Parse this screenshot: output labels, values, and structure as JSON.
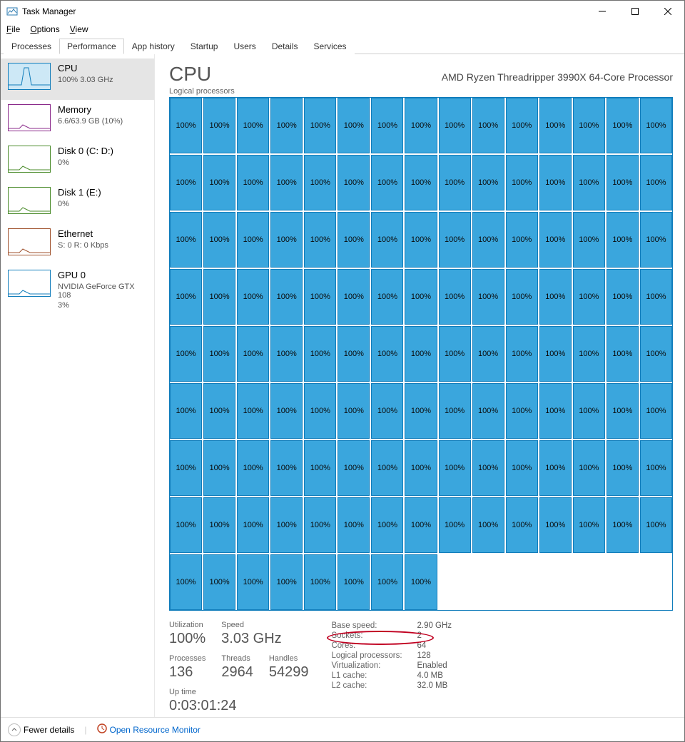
{
  "window": {
    "title": "Task Manager"
  },
  "menu": {
    "file": "File",
    "options": "Options",
    "view": "View"
  },
  "tabs": [
    "Processes",
    "Performance",
    "App history",
    "Startup",
    "Users",
    "Details",
    "Services"
  ],
  "active_tab": 1,
  "sidebar": {
    "items": [
      {
        "name": "CPU",
        "sub": "100% 3.03 GHz",
        "color": "#117dbb",
        "active": true
      },
      {
        "name": "Memory",
        "sub": "6.6/63.9 GB (10%)",
        "color": "#8b2a8b",
        "active": false
      },
      {
        "name": "Disk 0 (C: D:)",
        "sub": "0%",
        "color": "#4a8b2a",
        "active": false
      },
      {
        "name": "Disk 1 (E:)",
        "sub": "0%",
        "color": "#4a8b2a",
        "active": false
      },
      {
        "name": "Ethernet",
        "sub": "S: 0 R: 0 Kbps",
        "color": "#a0522d",
        "active": false
      },
      {
        "name": "GPU 0",
        "sub": "NVIDIA GeForce GTX 108",
        "sub2": "3%",
        "color": "#117dbb",
        "active": false
      }
    ]
  },
  "main": {
    "title": "CPU",
    "cpu_name": "AMD Ryzen Threadripper 3990X 64-Core Processor",
    "grid_label": "Logical processors",
    "grid": {
      "cols": 15,
      "rows": 9,
      "filled": 128,
      "cell_label": "100%",
      "cell_bg": "#3aa6dd",
      "cell_border": "#117dbb"
    },
    "stats_left": {
      "row1": [
        {
          "k": "Utilization",
          "v": "100%"
        },
        {
          "k": "Speed",
          "v": "3.03 GHz"
        }
      ],
      "row2": [
        {
          "k": "Processes",
          "v": "136"
        },
        {
          "k": "Threads",
          "v": "2964"
        },
        {
          "k": "Handles",
          "v": "54299"
        }
      ],
      "uptime_k": "Up time",
      "uptime_v": "0:03:01:24"
    },
    "stats_right": [
      {
        "k": "Base speed:",
        "v": "2.90 GHz"
      },
      {
        "k": "Sockets:",
        "v": "2"
      },
      {
        "k": "Cores:",
        "v": "64"
      },
      {
        "k": "Logical processors:",
        "v": "128"
      },
      {
        "k": "Virtualization:",
        "v": "Enabled"
      },
      {
        "k": "L1 cache:",
        "v": "4.0 MB"
      },
      {
        "k": "L2 cache:",
        "v": "32.0 MB"
      }
    ]
  },
  "footer": {
    "fewer": "Fewer details",
    "resmon": "Open Resource Monitor"
  },
  "annotation": {
    "ellipse_color": "#c00020",
    "target": "Sockets"
  }
}
